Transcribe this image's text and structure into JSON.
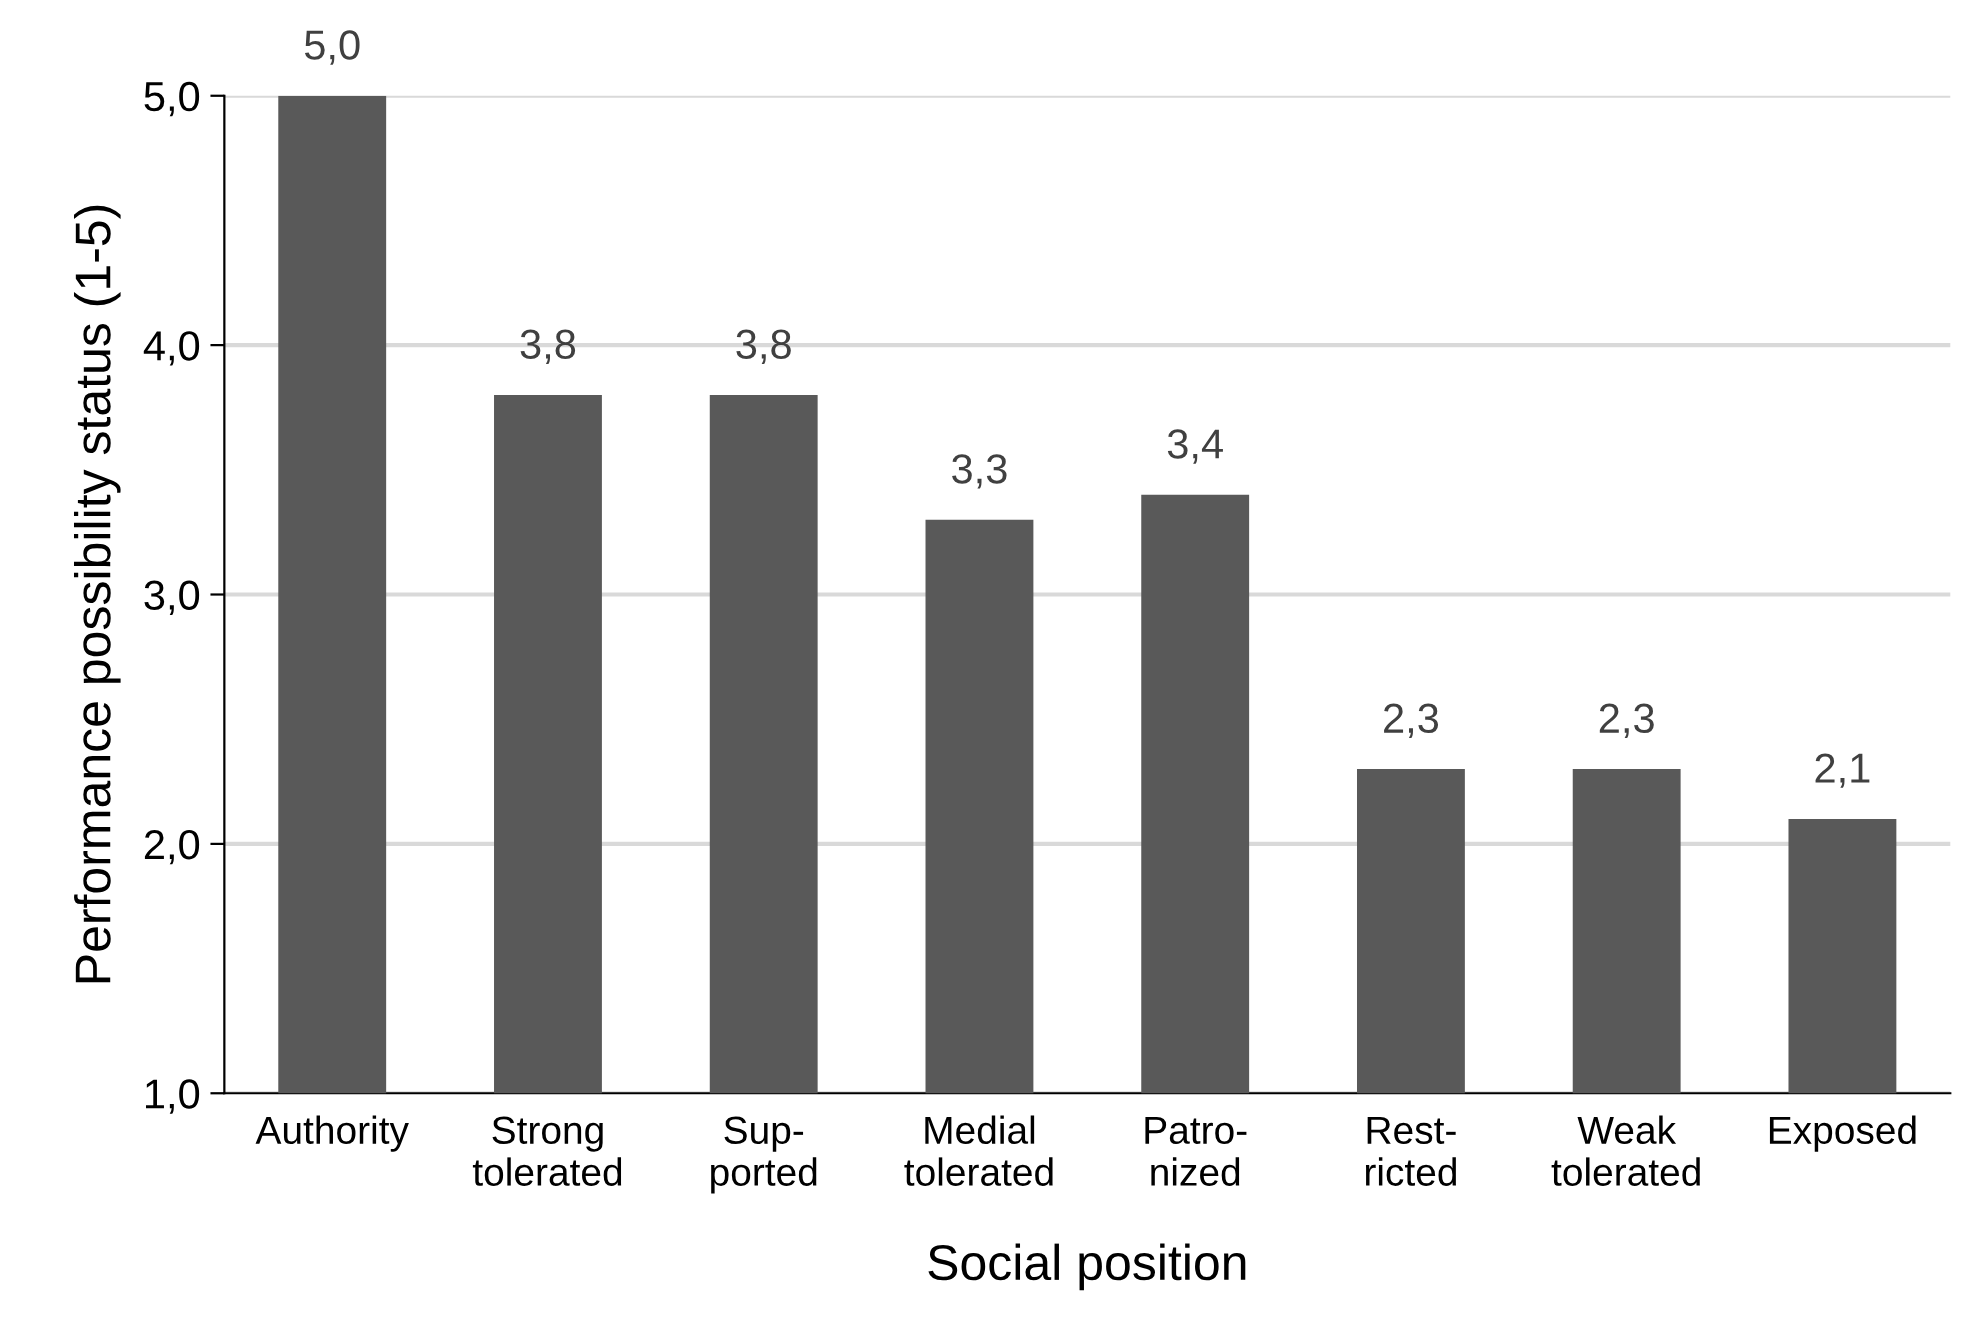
{
  "chart_data": {
    "type": "bar",
    "xlabel": "Social position",
    "ylabel": "Performance possibility status (1-5)",
    "categories": [
      "Authority",
      "Strong\ntolerated",
      "Sup-\nported",
      "Medial\ntolerated",
      "Patro-\nnized",
      "Rest-\nricted",
      "Weak\ntolerated",
      "Exposed"
    ],
    "values": [
      5.0,
      3.8,
      3.8,
      3.3,
      3.4,
      2.3,
      2.3,
      2.1
    ],
    "value_labels": [
      "5,0",
      "3,8",
      "3,8",
      "3,3",
      "3,4",
      "2,3",
      "2,3",
      "2,1"
    ],
    "color": "#595959",
    "ylim": [
      1,
      5
    ],
    "yticks": [
      {
        "value": 1,
        "label": "1,0"
      },
      {
        "value": 2,
        "label": "2,0"
      },
      {
        "value": 3,
        "label": "3,0"
      },
      {
        "value": 4,
        "label": "4,0"
      },
      {
        "value": 5,
        "label": "5,0"
      }
    ],
    "grid": "y",
    "legend": false
  }
}
